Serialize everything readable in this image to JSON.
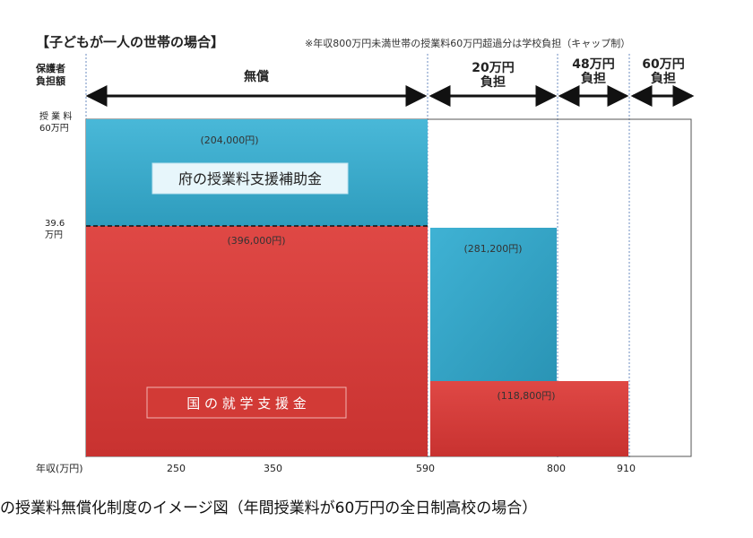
{
  "header": {
    "title": "【子どもが一人の世帯の場合】",
    "note": "※年収800万円未満世帯の授業料60万円超過分は学校負担（キャップ制）"
  },
  "burden_header": {
    "label_line1": "保護者",
    "label_line2": "負担額",
    "segments": [
      {
        "line1": "無償",
        "line2": ""
      },
      {
        "line1": "20万円",
        "line2": "負担"
      },
      {
        "line1": "48万円",
        "line2": "負担"
      },
      {
        "line1": "60万円",
        "line2": "負担"
      }
    ]
  },
  "y_axis": {
    "label_top_line1": "授 業 料",
    "label_top_line2": "60万円",
    "label_mid_line1": "39.6",
    "label_mid_line2": "万円"
  },
  "x_axis": {
    "label": "年収(万円)",
    "ticks": [
      "250",
      "350",
      "590",
      "800",
      "910"
    ]
  },
  "blocks": {
    "prefecture_label": "府の授業料支援補助金",
    "national_label": "国 の 就 学 支 援 金"
  },
  "caption": "の授業料無償化制度のイメージ図（年間授業料が60万円の全日制高校の場合）",
  "colors": {
    "prefecture": "#35a8c9",
    "national": "#d63c3a",
    "arrow": "#111111",
    "frame": "#444444"
  },
  "chart_data": {
    "type": "bar",
    "title": "【子どもが一人の世帯の場合】",
    "xlabel": "年収(万円)",
    "ylabel": "授業料",
    "x_ticks": [
      250,
      350,
      590,
      800,
      910
    ],
    "ylim": [
      0,
      600000
    ],
    "series": [
      {
        "name": "府の授業料支援補助金",
        "values": [
          {
            "income_range": "~590",
            "amount": 204000,
            "label": "(204,000円)"
          },
          {
            "income_range": "590~800",
            "amount": 281200,
            "label": "(281,200円)"
          }
        ]
      },
      {
        "name": "国の就学支援金",
        "values": [
          {
            "income_range": "~590",
            "amount": 396000,
            "label": "(396,000円)"
          },
          {
            "income_range": "590~910",
            "amount": 118800,
            "label": "(118,800円)"
          }
        ]
      }
    ],
    "parent_burden": [
      {
        "income_range": "~590",
        "label": "無償"
      },
      {
        "income_range": "590~800",
        "label": "20万円負担"
      },
      {
        "income_range": "800~910",
        "label": "48万円負担"
      },
      {
        "income_range": "910~",
        "label": "60万円負担"
      }
    ],
    "reference_line": {
      "value": 396000,
      "label": "39.6万円"
    }
  }
}
